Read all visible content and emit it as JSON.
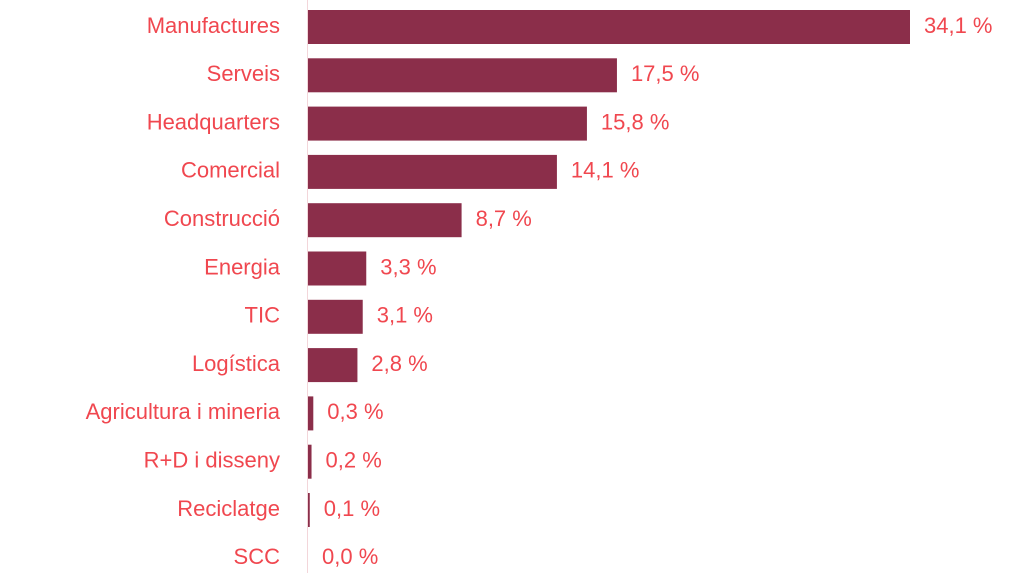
{
  "chart_data": {
    "type": "bar",
    "orientation": "horizontal",
    "color": "#8b2e4a",
    "categories": [
      "Manufactures",
      "Serveis",
      "Headquarters",
      "Comercial",
      "Construcció",
      "Energia",
      "TIC",
      "Logística",
      "Agricultura i mineria",
      "R+D i disseny",
      "Reciclatge",
      "SCC"
    ],
    "values": [
      34.1,
      17.5,
      15.8,
      14.1,
      8.7,
      3.3,
      3.1,
      2.8,
      0.3,
      0.2,
      0.1,
      0.0
    ],
    "value_labels": [
      "34,1 %",
      "17,5 %",
      "15,8 %",
      "14,1 %",
      "8,7 %",
      "3,3 %",
      "3,1 %",
      "2,8 %",
      "0,3 %",
      "0,2 %",
      "0,1 %",
      "0,0 %"
    ]
  }
}
